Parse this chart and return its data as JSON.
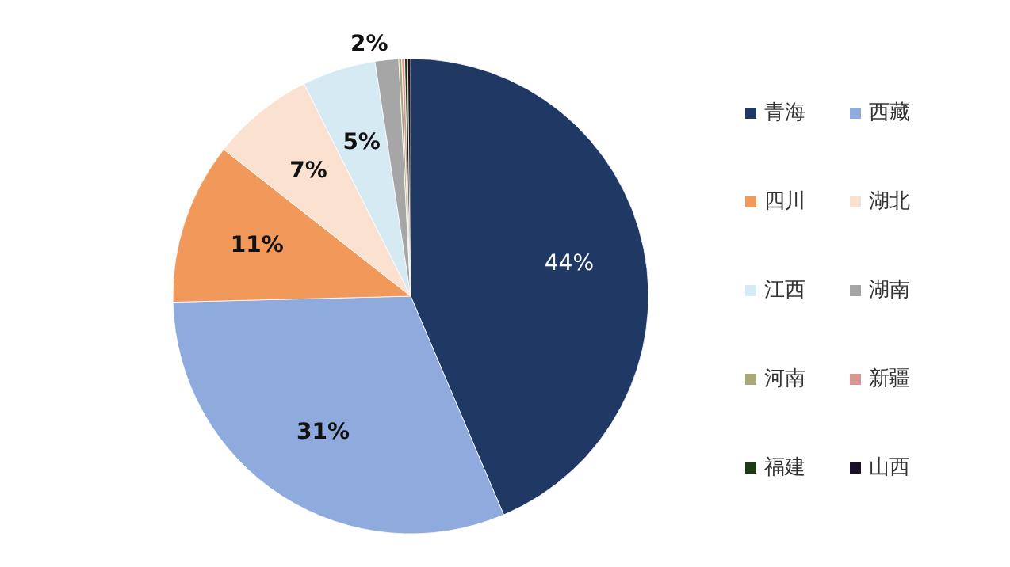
{
  "chart_data": {
    "type": "pie",
    "categories": [
      "青海",
      "西藏",
      "四川",
      "湖北",
      "江西",
      "湖南",
      "河南",
      "新疆",
      "福建",
      "山西"
    ],
    "values": [
      43.6,
      31,
      11,
      7,
      5,
      1.6,
      0.2,
      0.2,
      0.2,
      0.2
    ],
    "value_labels": [
      "44%",
      "31%",
      "11%",
      "7%",
      "5%",
      "2%",
      null,
      null,
      null,
      null
    ],
    "colors": [
      "#1f3864",
      "#8faadc",
      "#f0995a",
      "#fbe2d0",
      "#d6eaf3",
      "#a6a6a6",
      "#a9a978",
      "#d99694",
      "#1e3a12",
      "#1a0f26"
    ],
    "legend": "right"
  }
}
